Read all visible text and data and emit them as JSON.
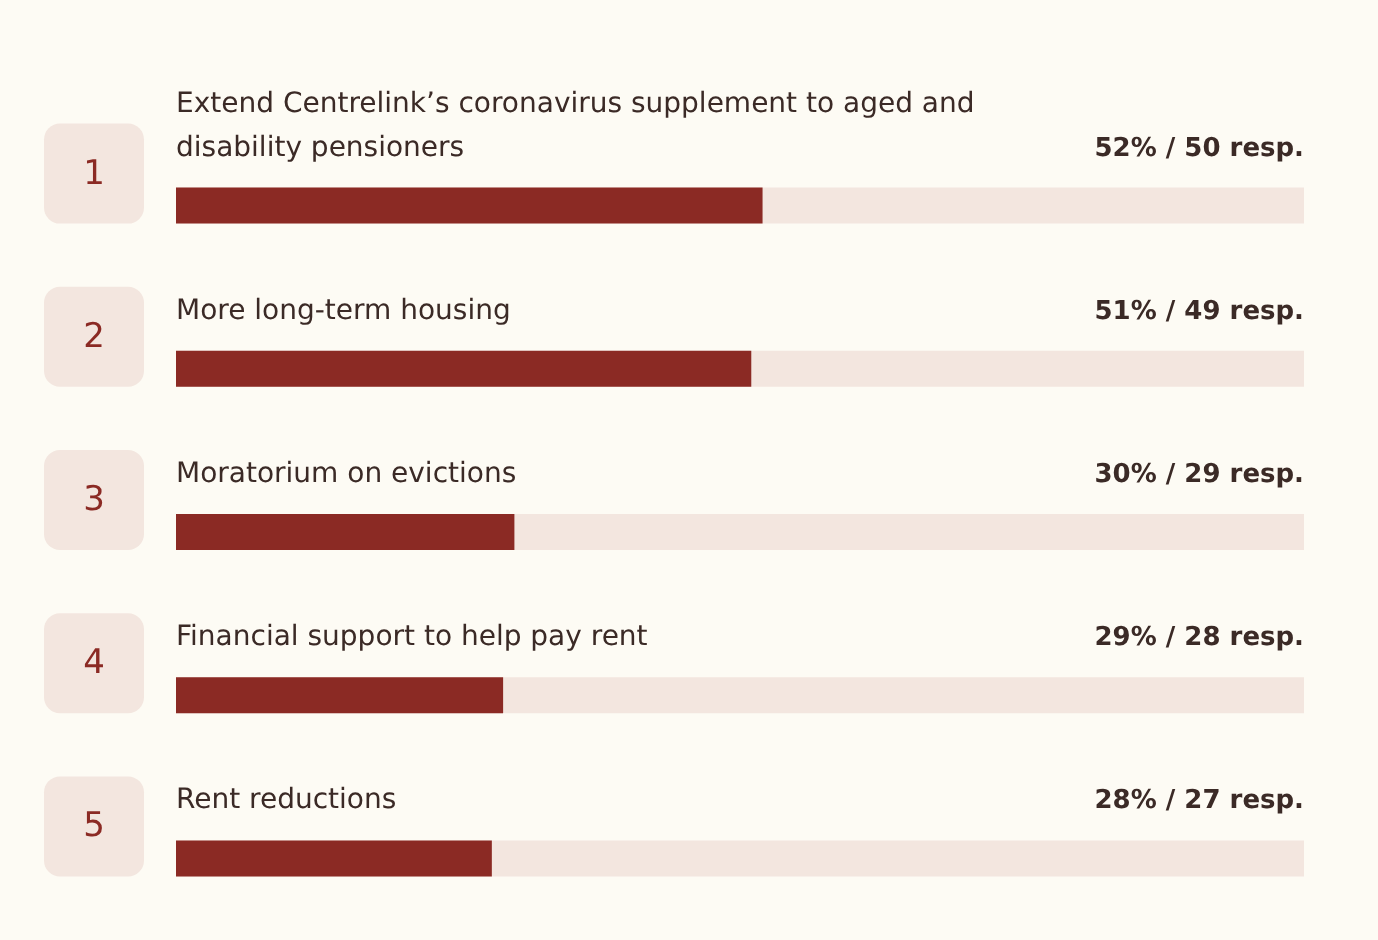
{
  "chart_data": {
    "type": "bar",
    "orientation": "horizontal",
    "categories": [
      "Extend Centrelink’s coronavirus supplement to aged and disability pensioners",
      "More long-term housing",
      "Moratorium on evictions",
      "Financial support to help pay rent",
      "Rent reductions"
    ],
    "values": [
      52,
      51,
      30,
      29,
      28
    ],
    "value_labels": [
      "52% / 50 resp.",
      "51% / 49 resp.",
      "30% / 29 resp.",
      "29% / 28 resp.",
      "28% / 27 resp."
    ],
    "color": "#8b2a24",
    "xlim": [
      0,
      100
    ],
    "tick_labels": false,
    "grid": false,
    "annotations": [
      "1",
      "2",
      "3",
      "4",
      "5"
    ]
  }
}
